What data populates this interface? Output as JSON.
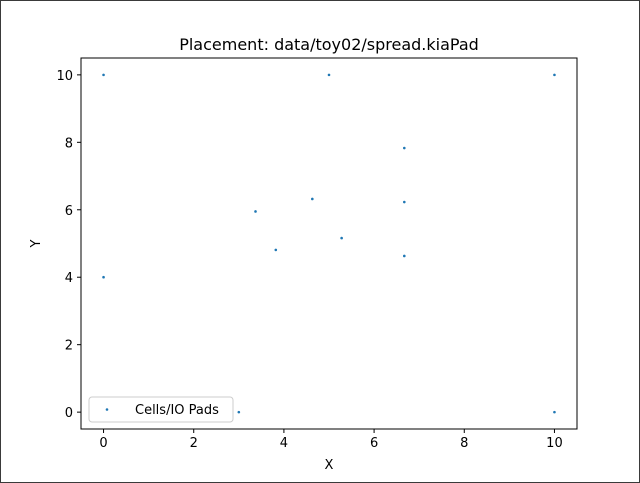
{
  "chart_data": {
    "type": "scatter",
    "title": "Placement: data/toy02/spread.kiaPad",
    "xlabel": "X",
    "ylabel": "Y",
    "xlim": [
      -0.5,
      10.5
    ],
    "ylim": [
      -0.5,
      10.5
    ],
    "x_ticks": [
      0,
      2,
      4,
      6,
      8,
      10
    ],
    "y_ticks": [
      0,
      2,
      4,
      6,
      8,
      10
    ],
    "grid": false,
    "legend_position": "lower-left",
    "series": [
      {
        "name": "Cells/IO Pads",
        "color": "#1f77b4",
        "marker": "point",
        "points": [
          {
            "x": 0,
            "y": 10
          },
          {
            "x": 5,
            "y": 10
          },
          {
            "x": 10,
            "y": 10
          },
          {
            "x": 6.67,
            "y": 7.83
          },
          {
            "x": 3.37,
            "y": 5.95
          },
          {
            "x": 4.63,
            "y": 6.32
          },
          {
            "x": 6.67,
            "y": 6.23
          },
          {
            "x": 3.82,
            "y": 4.81
          },
          {
            "x": 5.28,
            "y": 5.16
          },
          {
            "x": 6.67,
            "y": 4.63
          },
          {
            "x": 0,
            "y": 4
          },
          {
            "x": 3,
            "y": 0
          },
          {
            "x": 10,
            "y": 0
          }
        ]
      }
    ]
  }
}
